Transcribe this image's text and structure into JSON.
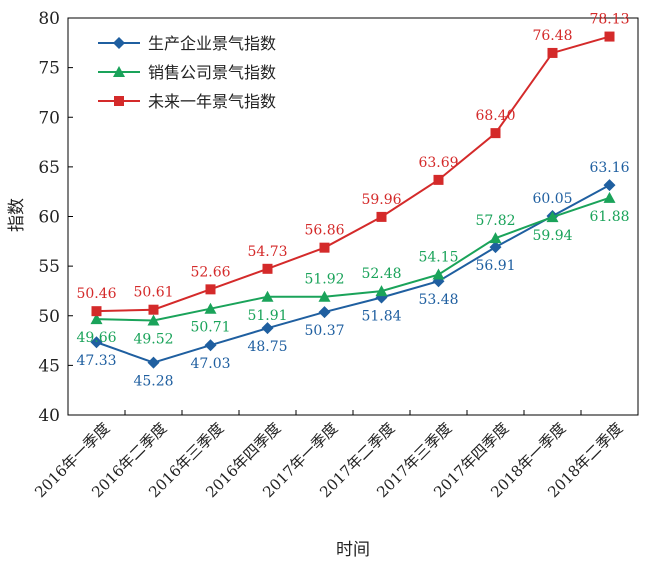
{
  "chart_data": {
    "type": "line",
    "title": "",
    "xlabel": "时间",
    "ylabel": "指数",
    "ylim": [
      40,
      80
    ],
    "yticks": [
      40,
      45,
      50,
      55,
      60,
      65,
      70,
      75,
      80
    ],
    "grid": false,
    "legend_position": "top-left",
    "categories": [
      "2016年一季度",
      "2016年二季度",
      "2016年三季度",
      "2016年四季度",
      "2017年一季度",
      "2017年二季度",
      "2017年三季度",
      "2017年四季度",
      "2018年一季度",
      "2018年二季度"
    ],
    "series": [
      {
        "name": "生产企业景气指数",
        "color": "#1f5fa0",
        "marker": "diamond",
        "values": [
          47.33,
          45.28,
          47.03,
          48.75,
          50.37,
          51.84,
          53.48,
          56.91,
          60.05,
          63.16
        ],
        "labels": [
          "47.33",
          "45.28",
          "47.03",
          "48.75",
          "50.37",
          "51.84",
          "53.48",
          "56.91",
          "60.05",
          "63.16"
        ],
        "label_pos": [
          "below",
          "below",
          "below",
          "below",
          "below",
          "below",
          "below",
          "below",
          "above",
          "above"
        ]
      },
      {
        "name": "销售公司景气指数",
        "color": "#1aa35a",
        "marker": "triangle",
        "values": [
          49.66,
          49.52,
          50.71,
          51.91,
          51.92,
          52.48,
          54.15,
          57.82,
          59.94,
          61.88
        ],
        "labels": [
          "49.66",
          "49.52",
          "50.71",
          "51.91",
          "51.92",
          "52.48",
          "54.15",
          "57.82",
          "59.94",
          "61.88"
        ],
        "label_pos": [
          "below",
          "below",
          "below",
          "below",
          "above",
          "above",
          "above",
          "above",
          "below",
          "below"
        ]
      },
      {
        "name": "未来一年景气指数",
        "color": "#d42a2a",
        "marker": "square",
        "values": [
          50.46,
          50.61,
          52.66,
          54.73,
          56.86,
          59.96,
          63.69,
          68.4,
          76.48,
          78.13
        ],
        "labels": [
          "50.46",
          "50.61",
          "52.66",
          "54.73",
          "56.86",
          "59.96",
          "63.69",
          "68.40",
          "76.48",
          "78.13"
        ],
        "label_pos": [
          "above",
          "above",
          "above",
          "above",
          "above",
          "above",
          "above",
          "above",
          "above",
          "above"
        ]
      }
    ]
  }
}
